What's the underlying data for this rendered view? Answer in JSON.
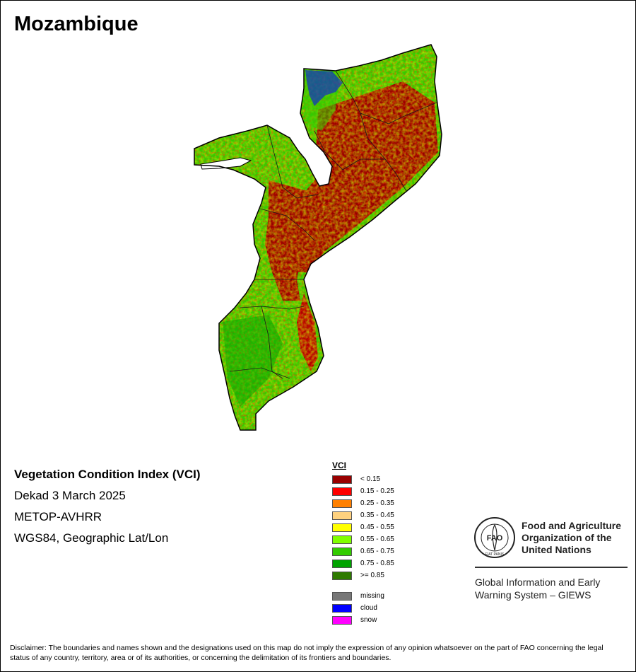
{
  "title": "Mozambique",
  "info": {
    "index_name": "Vegetation Condition Index (VCI)",
    "period": "Dekad 3 March 2025",
    "sensor": "METOP-AVHRR",
    "projection": "WGS84, Geographic Lat/Lon"
  },
  "legend": {
    "title": "VCI",
    "classes": [
      {
        "label": "< 0.15",
        "color": "#990000"
      },
      {
        "label": "0.15 - 0.25",
        "color": "#ff0000"
      },
      {
        "label": "0.25 - 0.35",
        "color": "#ff8000"
      },
      {
        "label": "0.35 - 0.45",
        "color": "#ffd27f"
      },
      {
        "label": "0.45 - 0.55",
        "color": "#ffff00"
      },
      {
        "label": "0.55 - 0.65",
        "color": "#80ff00"
      },
      {
        "label": "0.65 - 0.75",
        "color": "#33cc00"
      },
      {
        "label": "0.75 - 0.85",
        "color": "#00a300"
      },
      {
        "label": ">= 0.85",
        "color": "#2e7a00"
      }
    ],
    "other": [
      {
        "label": "missing",
        "color": "#777777"
      },
      {
        "label": "cloud",
        "color": "#0000ff"
      },
      {
        "label": "snow",
        "color": "#ff00ff"
      }
    ]
  },
  "branding": {
    "org_name": "Food and Agriculture Organization of the United Nations",
    "logo_text": "FAO",
    "logo_ring_text": "FIAT PANIS",
    "system_name": "Global Information and Early Warning System – GIEWS"
  },
  "disclaimer": "Disclaimer: The boundaries and names shown and the designations used on this map do not imply the expression of any opinion whatsoever on the part of FAO concerning the legal status of any country, territory, area or of its authorities, or concerning the delimitation of its frontiers and boundaries."
}
